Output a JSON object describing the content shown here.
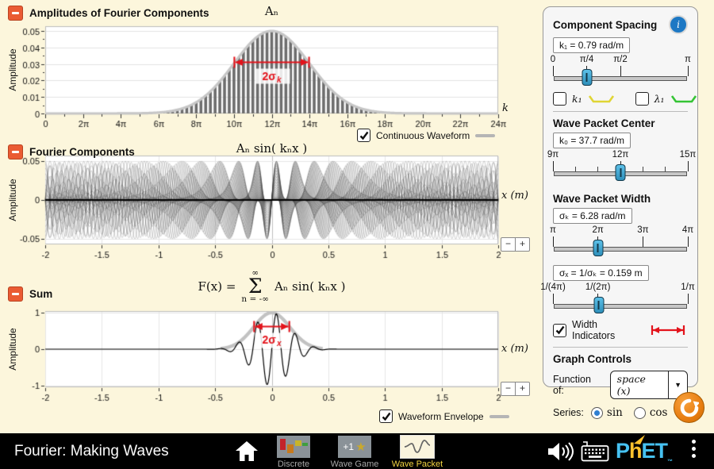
{
  "colors": {
    "background": "#fcf6dc",
    "accent_orange": "#ea5b33",
    "slider_blue": "#3ca3cf",
    "indicator_red": "#e3131b",
    "bar_gray": "#6d6d6d",
    "envelope_gray": "#c6c6c6"
  },
  "charts": {
    "amplitudes": {
      "header": "Amplitudes of Fourier Components",
      "title": "Aₙ",
      "ylabel": "Amplitude",
      "xlabel": "k",
      "y_ticks": [
        "0",
        "0.01",
        "0.02",
        "0.03",
        "0.04",
        "0.05"
      ],
      "x_ticks": [
        "0",
        "2π",
        "4π",
        "6π",
        "8π",
        "10π",
        "12π",
        "14π",
        "16π",
        "18π",
        "20π",
        "22π",
        "24π"
      ],
      "width_label": {
        "main": "2σ",
        "sub": "k"
      },
      "legend_checkbox": "Continuous Waveform",
      "chart_data": {
        "type": "bar",
        "k1_rad_per_m": 0.7854,
        "k0_rad_per_m": 37.699,
        "sigma_k_rad_per_m": 6.2832,
        "peak_amplitude": 0.05,
        "x_range_pi": [
          0,
          24
        ],
        "y_range": [
          0,
          0.05
        ],
        "indicator": {
          "y": 0.031,
          "from_pi": 10,
          "to_pi": 14
        }
      }
    },
    "components": {
      "header": "Fourier Components",
      "title": "Aₙ sin( kₙx )",
      "ylabel": "Amplitude",
      "xlabel": "x (m)",
      "y_ticks": [
        "0.05",
        "0",
        "-0.05"
      ],
      "x_ticks": [
        "-2",
        "-1.5",
        "-1",
        "-0.5",
        "0",
        "0.5",
        "1",
        "1.5",
        "2"
      ],
      "zoom_out": "−",
      "zoom_in": "+",
      "chart_data": {
        "type": "line",
        "x_range": [
          -2,
          2
        ],
        "y_range": [
          -0.05,
          0.05
        ],
        "num_components": 96
      }
    },
    "sum": {
      "header": "Sum",
      "equation": {
        "lhs": "F(x) =",
        "sigma_top": "∞",
        "sigma": "Σ",
        "sigma_bottom": "n = -∞",
        "rhs": "Aₙ sin( kₙx )"
      },
      "ylabel": "Amplitude",
      "xlabel": "x (m)",
      "y_ticks": [
        "1",
        "0",
        "-1"
      ],
      "x_ticks": [
        "-2",
        "-1.5",
        "-1",
        "-0.5",
        "0",
        "0.5",
        "1",
        "1.5",
        "2"
      ],
      "width_label": {
        "main": "2σ",
        "sub": "x"
      },
      "legend_checkbox": "Waveform Envelope",
      "zoom_out": "−",
      "zoom_in": "+",
      "chart_data": {
        "type": "line",
        "x_range": [
          -2,
          2
        ],
        "y_range": [
          -1,
          1
        ],
        "sigma_x_m": 0.159,
        "k0_rad_per_m": 37.699,
        "indicator": {
          "y": 0.62,
          "from": -0.159,
          "to": 0.159
        }
      }
    }
  },
  "panel": {
    "component_spacing": {
      "title": "Component Spacing",
      "info_icon": "i",
      "value": "k₁ = 0.79 rad/m",
      "slider": {
        "labels": [
          {
            "t": "0",
            "p": 0
          },
          {
            "t": "π/4",
            "p": 0.25
          },
          {
            "t": "π/2",
            "p": 0.5
          },
          {
            "t": "π",
            "p": 1
          }
        ],
        "thumb": 0.25
      },
      "checkboxes": [
        {
          "label": "k₁",
          "checked": false,
          "swatch": "#e0d535"
        },
        {
          "label": "λ₁",
          "checked": false,
          "swatch": "#35c435"
        }
      ]
    },
    "wave_packet_center": {
      "title": "Wave Packet Center",
      "value": "k₀ = 37.7 rad/m",
      "slider": {
        "labels": [
          {
            "t": "9π",
            "p": 0
          },
          {
            "t": "12π",
            "p": 0.5
          },
          {
            "t": "15π",
            "p": 1
          }
        ],
        "thumb": 0.5,
        "minor_divisions": 6
      }
    },
    "wave_packet_width": {
      "title": "Wave Packet Width",
      "value_k": "σₖ = 6.28 rad/m",
      "slider_k": {
        "labels": [
          {
            "t": "π",
            "p": 0
          },
          {
            "t": "2π",
            "p": 0.333
          },
          {
            "t": "3π",
            "p": 0.667
          },
          {
            "t": "4π",
            "p": 1
          }
        ],
        "thumb": 0.333
      },
      "value_x": "σₓ = 1/σₖ = 0.159 m",
      "slider_x": {
        "labels": [
          {
            "t": "1/(4π)",
            "p": 0
          },
          {
            "t": "1/(2π)",
            "p": 0.333
          },
          {
            "t": "1/π",
            "p": 1
          }
        ],
        "thumb": 0.34
      },
      "width_indicators_label": "Width Indicators"
    },
    "graph_controls": {
      "title": "Graph Controls",
      "function_label": "Function of:",
      "function_value": "space (x)",
      "dropdown_arrow": "▼",
      "series_label": "Series:",
      "series_options": [
        {
          "label": "sin",
          "selected": true
        },
        {
          "label": "cos",
          "selected": false
        }
      ]
    }
  },
  "navbar": {
    "title": "Fourier: Making Waves",
    "screens": [
      {
        "label": "Discrete",
        "active": false
      },
      {
        "label": "Wave Game",
        "badge": "+1",
        "star": "★",
        "active": false
      },
      {
        "label": "Wave Packet",
        "active": true
      }
    ],
    "logo": {
      "p": "P",
      "h": "h",
      "et": "ET",
      "tm": "™"
    }
  }
}
